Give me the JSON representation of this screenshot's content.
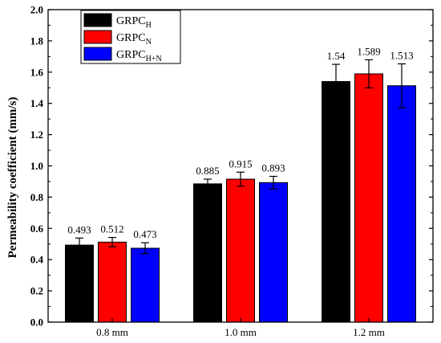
{
  "chart_data": {
    "type": "bar",
    "categories": [
      "0.8 mm",
      "1.0 mm",
      "1.2 mm"
    ],
    "ylabel": "Permeability coefficient (mm/s)",
    "xlabel": "",
    "ylim": [
      0,
      2.0
    ],
    "yticks": [
      "0.0",
      "0.2",
      "0.4",
      "0.6",
      "0.8",
      "1.0",
      "1.2",
      "1.4",
      "1.6",
      "1.8",
      "2.0"
    ],
    "legend_position": "top-left",
    "series": [
      {
        "name": "GRPC",
        "subscript": "H",
        "color": "#000000",
        "values": [
          0.493,
          0.885,
          1.54
        ],
        "labels": [
          "0.493",
          "0.885",
          "1.54"
        ],
        "errors": [
          0.045,
          0.03,
          0.11
        ]
      },
      {
        "name": "GRPC",
        "subscript": "N",
        "color": "#ff0000",
        "values": [
          0.512,
          0.915,
          1.589
        ],
        "labels": [
          "0.512",
          "0.915",
          "1.589"
        ],
        "errors": [
          0.03,
          0.045,
          0.09
        ]
      },
      {
        "name": "GRPC",
        "subscript": "H+N",
        "color": "#0000ff",
        "values": [
          0.473,
          0.893,
          1.513
        ],
        "labels": [
          "0.473",
          "0.893",
          "1.513"
        ],
        "errors": [
          0.035,
          0.04,
          0.14
        ]
      }
    ]
  }
}
